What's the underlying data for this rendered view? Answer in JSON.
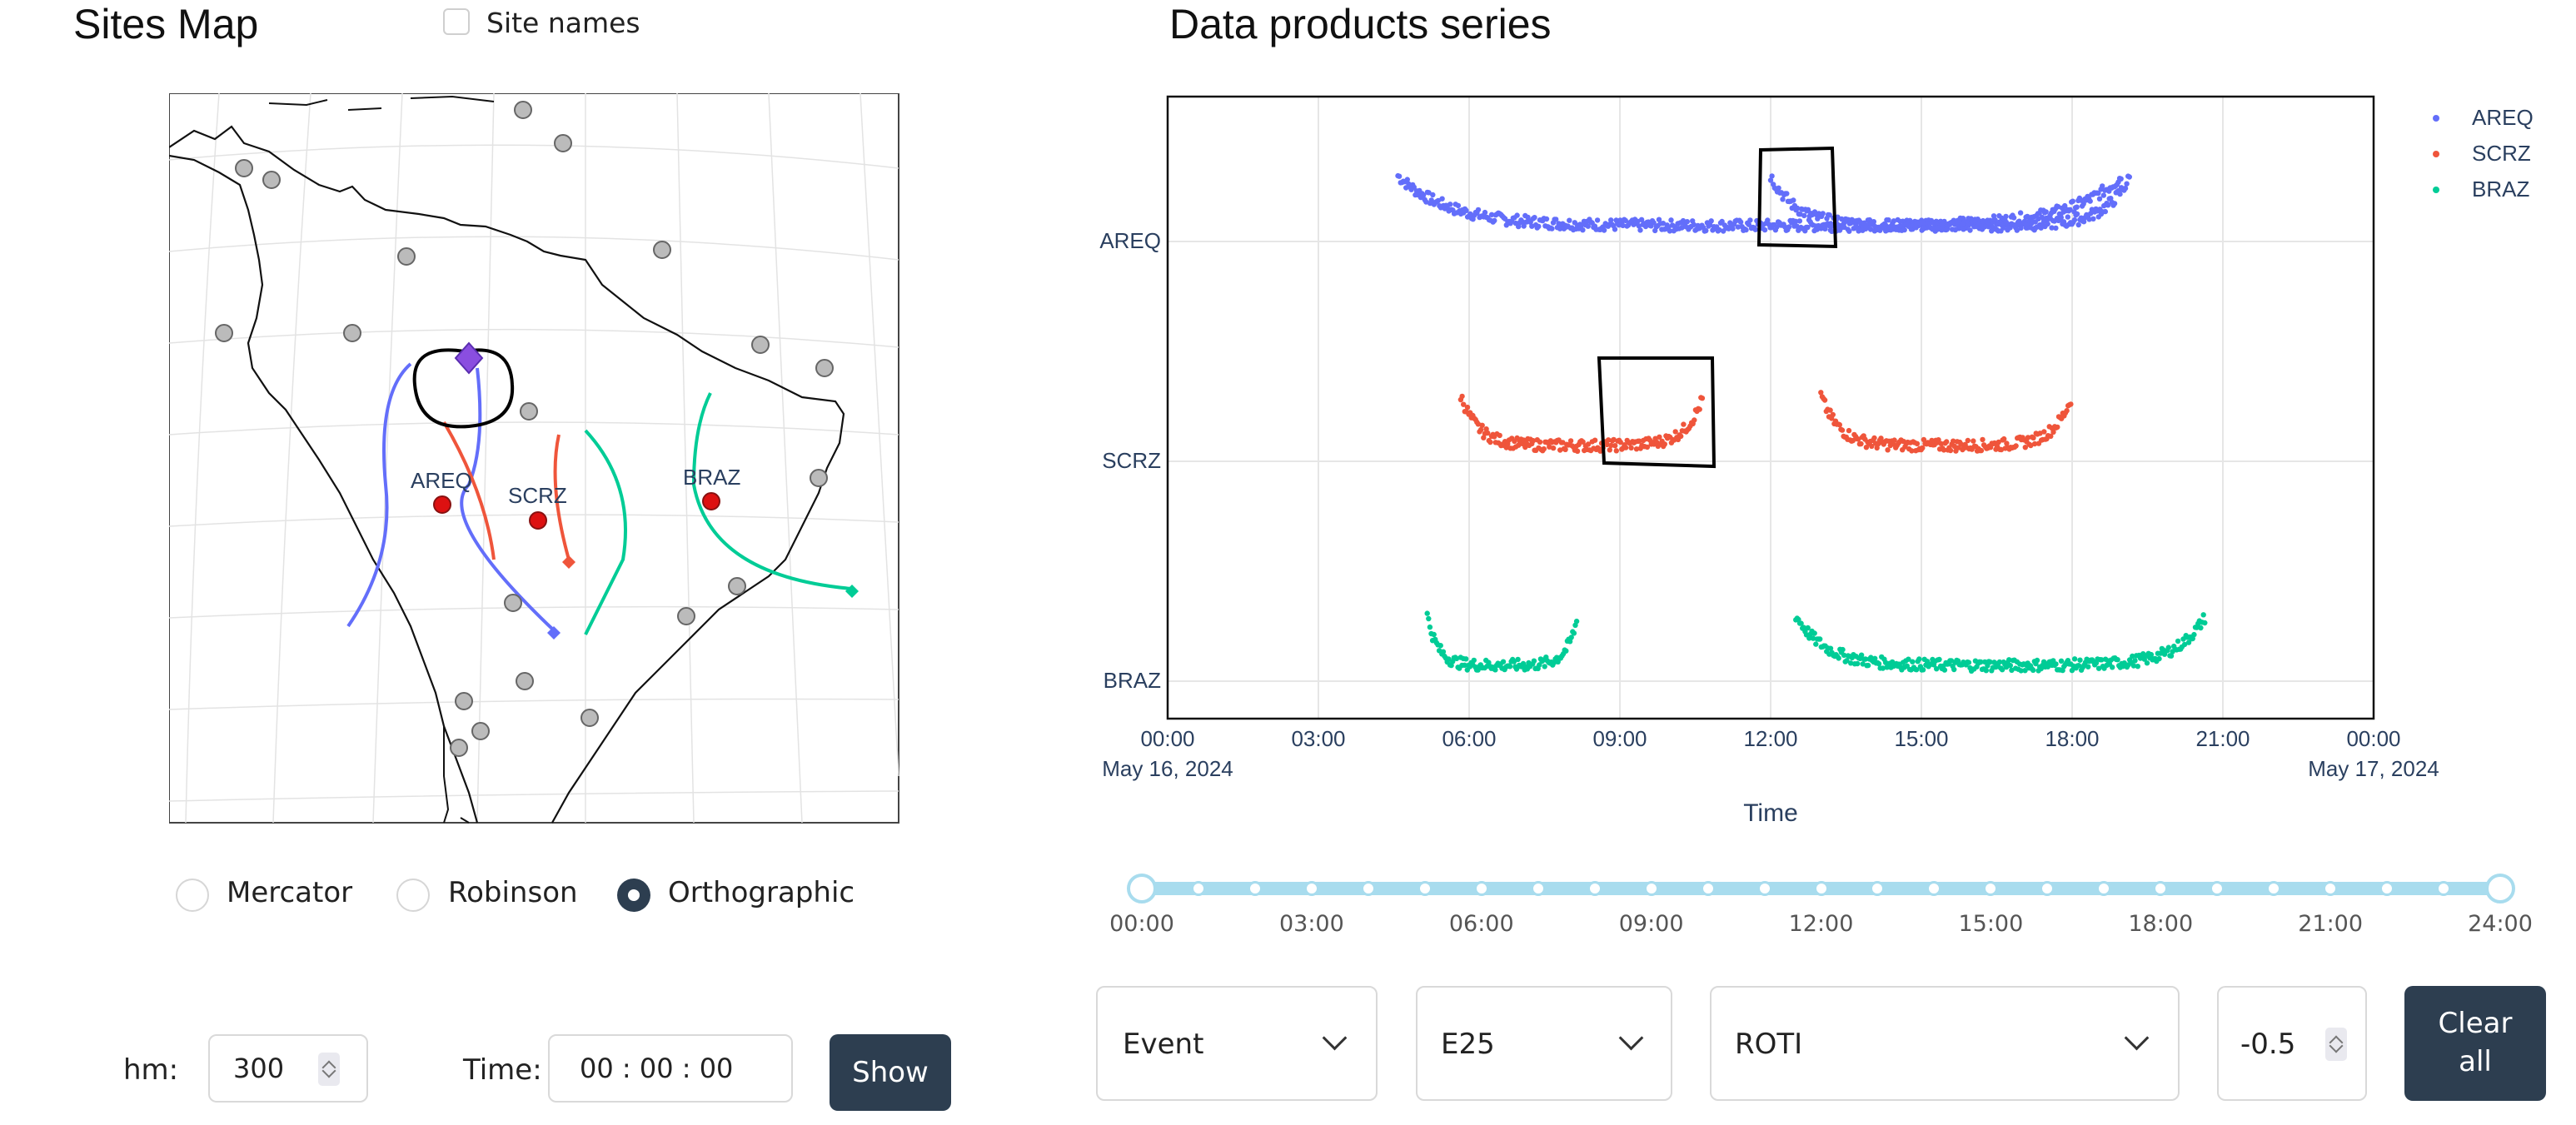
{
  "left": {
    "title": "Sites Map",
    "site_names_label": "Site names",
    "projections": [
      "Mercator",
      "Robinson",
      "Orthographic"
    ],
    "selected_projection": "Orthographic",
    "map_labels": {
      "areq": "AREQ",
      "scrz": "SCRZ",
      "braz": "BRAZ"
    },
    "hm_label": "hm:",
    "hm_value": "300",
    "time_label": "Time:",
    "time_value": "00 : 00 : 00",
    "show_button": "Show"
  },
  "right": {
    "title": "Data products series",
    "slider_ticks": [
      "00:00",
      "03:00",
      "06:00",
      "09:00",
      "12:00",
      "15:00",
      "18:00",
      "21:00",
      "24:00"
    ],
    "dropdowns": {
      "event": "Event",
      "e25": "E25",
      "product": "ROTI"
    },
    "number_value": "-0.5",
    "clear_button_line1": "Clear",
    "clear_button_line2": "all"
  },
  "colors": {
    "areq": "#636efa",
    "scrz": "#ef553b",
    "braz": "#00cc96",
    "accent": "#2d3e50",
    "slider": "#a8dcee"
  },
  "icons": [
    "chevron-down-icon",
    "spinner-arrows-icon",
    "site-marker-icon",
    "diamond-marker-icon"
  ],
  "chart_data": {
    "type": "scatter",
    "xlabel": "Time",
    "x_ticks": [
      "00:00",
      "03:00",
      "06:00",
      "09:00",
      "12:00",
      "15:00",
      "18:00",
      "21:00",
      "00:00"
    ],
    "x_date_start": "May 16, 2024",
    "x_date_end": "May 17, 2024",
    "y_categories": [
      "AREQ",
      "SCRZ",
      "BRAZ"
    ],
    "xlim": [
      "00:00",
      "24:00"
    ],
    "legend_position": "top-right",
    "grid": true,
    "series": [
      {
        "name": "AREQ",
        "segments": [
          [
            "04:35",
            "19:00"
          ],
          [
            "12:00",
            "19:10"
          ]
        ],
        "level": "AREQ"
      },
      {
        "name": "SCRZ",
        "segments": [
          [
            "05:50",
            "10:40"
          ],
          [
            "13:00",
            "18:00"
          ]
        ],
        "level": "SCRZ"
      },
      {
        "name": "BRAZ",
        "segments": [
          [
            "05:10",
            "08:10"
          ],
          [
            "12:30",
            "20:40"
          ]
        ],
        "level": "BRAZ"
      }
    ]
  }
}
